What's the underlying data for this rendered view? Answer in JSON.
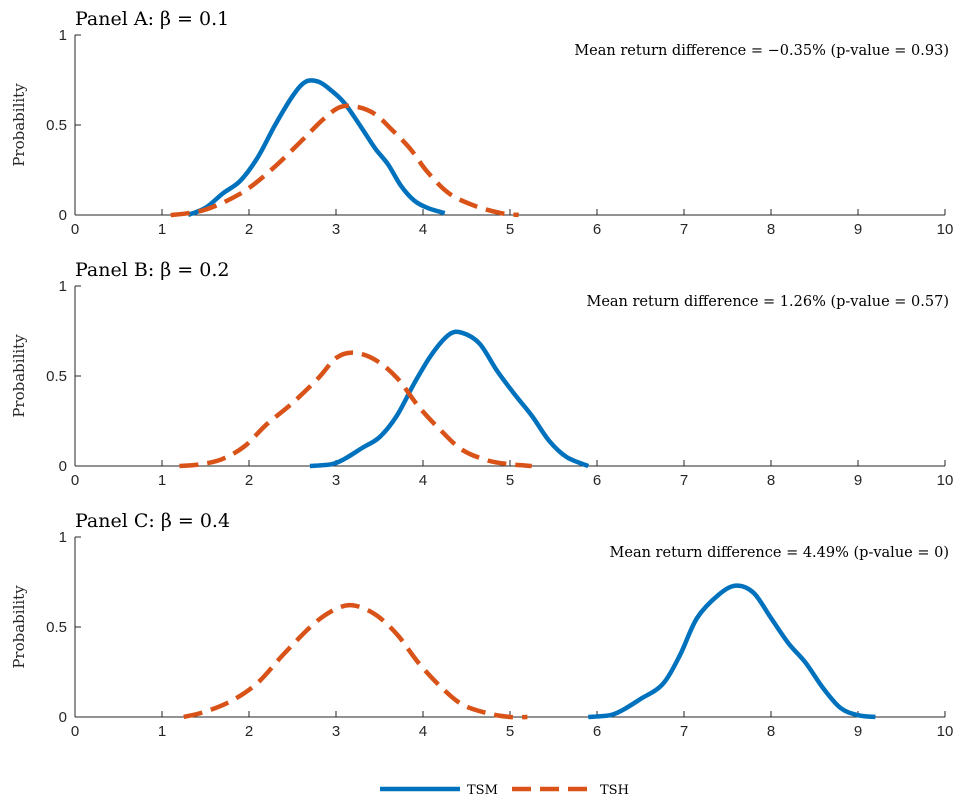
{
  "chart_data": {
    "type": "line",
    "x_range": [
      0,
      10
    ],
    "y_range": [
      0,
      1
    ],
    "x_ticks": [
      0,
      1,
      2,
      3,
      4,
      5,
      6,
      7,
      8,
      9,
      10
    ],
    "y_ticks": [
      "0",
      "0.5",
      "1"
    ],
    "ylabel": "Probability",
    "legend": {
      "placement": "bottom-center",
      "entries": [
        {
          "name": "TSM",
          "color": "#0072BD",
          "style": "solid"
        },
        {
          "name": "TSH",
          "color": "#D95319",
          "style": "dashed"
        }
      ]
    },
    "panels": [
      {
        "title": "Panel A: β = 0.1",
        "annotation": "Mean return difference = −0.35% (p-value = 0.93)",
        "series": [
          {
            "name": "TSM",
            "points": [
              [
                1.3,
                0.0
              ],
              [
                1.5,
                0.04
              ],
              [
                1.7,
                0.12
              ],
              [
                1.9,
                0.19
              ],
              [
                2.1,
                0.32
              ],
              [
                2.3,
                0.5
              ],
              [
                2.5,
                0.66
              ],
              [
                2.65,
                0.74
              ],
              [
                2.8,
                0.74
              ],
              [
                2.95,
                0.69
              ],
              [
                3.1,
                0.62
              ],
              [
                3.3,
                0.48
              ],
              [
                3.45,
                0.37
              ],
              [
                3.6,
                0.28
              ],
              [
                3.75,
                0.16
              ],
              [
                3.9,
                0.08
              ],
              [
                4.05,
                0.04
              ],
              [
                4.25,
                0.01
              ]
            ]
          },
          {
            "name": "TSH",
            "points": [
              [
                1.1,
                0.0
              ],
              [
                1.3,
                0.01
              ],
              [
                1.5,
                0.03
              ],
              [
                1.75,
                0.08
              ],
              [
                2.0,
                0.15
              ],
              [
                2.3,
                0.27
              ],
              [
                2.6,
                0.41
              ],
              [
                2.85,
                0.53
              ],
              [
                3.05,
                0.6
              ],
              [
                3.25,
                0.6
              ],
              [
                3.45,
                0.56
              ],
              [
                3.65,
                0.47
              ],
              [
                3.85,
                0.37
              ],
              [
                4.05,
                0.24
              ],
              [
                4.3,
                0.12
              ],
              [
                4.6,
                0.05
              ],
              [
                4.9,
                0.01
              ],
              [
                5.1,
                0.0
              ]
            ]
          }
        ]
      },
      {
        "title": "Panel B: β = 0.2",
        "annotation": "Mean return difference = 1.26% (p-value = 0.57)",
        "series": [
          {
            "name": "TSM",
            "points": [
              [
                2.7,
                0.0
              ],
              [
                2.95,
                0.01
              ],
              [
                3.1,
                0.04
              ],
              [
                3.3,
                0.1
              ],
              [
                3.5,
                0.16
              ],
              [
                3.7,
                0.28
              ],
              [
                3.9,
                0.46
              ],
              [
                4.1,
                0.62
              ],
              [
                4.3,
                0.73
              ],
              [
                4.45,
                0.74
              ],
              [
                4.65,
                0.68
              ],
              [
                4.85,
                0.53
              ],
              [
                5.05,
                0.4
              ],
              [
                5.25,
                0.28
              ],
              [
                5.45,
                0.14
              ],
              [
                5.65,
                0.05
              ],
              [
                5.9,
                0.0
              ]
            ]
          },
          {
            "name": "TSH",
            "points": [
              [
                1.2,
                0.0
              ],
              [
                1.45,
                0.01
              ],
              [
                1.7,
                0.04
              ],
              [
                1.95,
                0.11
              ],
              [
                2.2,
                0.23
              ],
              [
                2.5,
                0.35
              ],
              [
                2.8,
                0.49
              ],
              [
                3.0,
                0.6
              ],
              [
                3.2,
                0.63
              ],
              [
                3.45,
                0.59
              ],
              [
                3.7,
                0.49
              ],
              [
                3.95,
                0.33
              ],
              [
                4.2,
                0.2
              ],
              [
                4.45,
                0.09
              ],
              [
                4.75,
                0.03
              ],
              [
                5.0,
                0.01
              ],
              [
                5.25,
                0.0
              ]
            ]
          }
        ]
      },
      {
        "title": "Panel C: β = 0.4",
        "annotation": "Mean return difference = 4.49% (p-value = 0)",
        "series": [
          {
            "name": "TSM",
            "points": [
              [
                5.9,
                0.0
              ],
              [
                6.15,
                0.01
              ],
              [
                6.3,
                0.04
              ],
              [
                6.5,
                0.1
              ],
              [
                6.75,
                0.18
              ],
              [
                6.95,
                0.34
              ],
              [
                7.15,
                0.55
              ],
              [
                7.4,
                0.68
              ],
              [
                7.6,
                0.73
              ],
              [
                7.8,
                0.69
              ],
              [
                8.0,
                0.55
              ],
              [
                8.2,
                0.41
              ],
              [
                8.4,
                0.3
              ],
              [
                8.6,
                0.16
              ],
              [
                8.8,
                0.05
              ],
              [
                9.0,
                0.01
              ],
              [
                9.2,
                0.0
              ]
            ]
          },
          {
            "name": "TSH",
            "points": [
              [
                1.25,
                0.0
              ],
              [
                1.5,
                0.03
              ],
              [
                1.8,
                0.09
              ],
              [
                2.1,
                0.19
              ],
              [
                2.4,
                0.35
              ],
              [
                2.75,
                0.52
              ],
              [
                3.0,
                0.6
              ],
              [
                3.2,
                0.62
              ],
              [
                3.45,
                0.57
              ],
              [
                3.7,
                0.46
              ],
              [
                3.95,
                0.3
              ],
              [
                4.2,
                0.17
              ],
              [
                4.45,
                0.07
              ],
              [
                4.75,
                0.02
              ],
              [
                5.0,
                0.0
              ],
              [
                5.2,
                0.0
              ]
            ]
          }
        ]
      }
    ]
  }
}
